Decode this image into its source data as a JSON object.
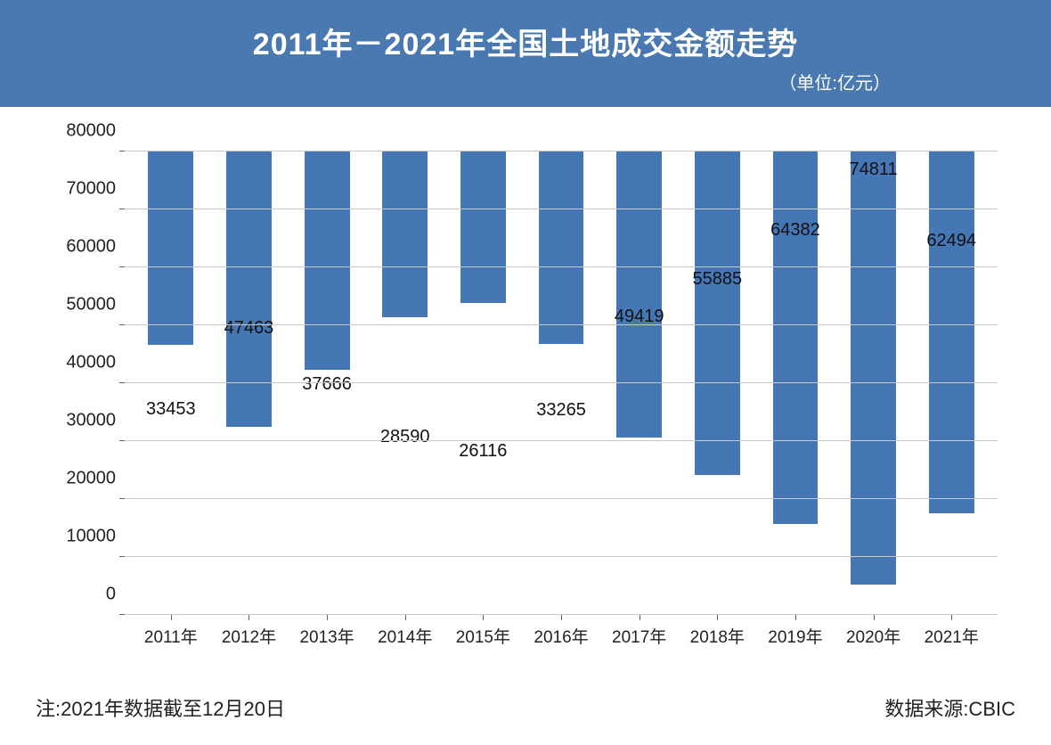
{
  "header": {
    "title": "2011年－2021年全国土地成交金额走势",
    "subtitle": "（单位:亿元）",
    "background_color": "#4a78b1",
    "title_color": "#ffffff",
    "title_fontsize": 34,
    "subtitle_fontsize": 20
  },
  "chart": {
    "type": "bar",
    "categories": [
      "2011年",
      "2012年",
      "2013年",
      "2014年",
      "2015年",
      "2016年",
      "2017年",
      "2018年",
      "2019年",
      "2020年",
      "2021年"
    ],
    "values": [
      33453,
      47463,
      37666,
      28590,
      26116,
      33265,
      49419,
      55885,
      64382,
      74811,
      62494
    ],
    "bar_color": "#4577b4",
    "background_color": "#ffffff",
    "grid_color": "#c9c9c9",
    "axis_color": "#666666",
    "ylim": [
      0,
      80000
    ],
    "ytick_step": 10000,
    "yticks": [
      0,
      10000,
      20000,
      30000,
      40000,
      50000,
      60000,
      70000,
      80000
    ],
    "value_label_fontsize": 20,
    "tick_label_fontsize": 20,
    "bar_width_ratio": 0.58
  },
  "footer": {
    "note": "注:2021年数据截至12月20日",
    "source": "数据来源:CBIC",
    "fontsize": 22,
    "color": "#222222"
  }
}
